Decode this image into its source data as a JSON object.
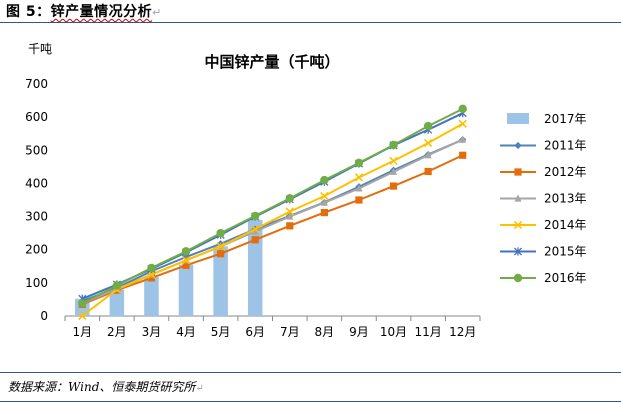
{
  "figure": {
    "label": "图 5：",
    "caption": "锌产量情况分析",
    "para_mark": "↵"
  },
  "source": {
    "text": "数据来源：Wind、恒泰期货研究所",
    "para_mark": "↵"
  },
  "chart_data": {
    "type": "bar+line",
    "title": "中国锌产量（千吨）",
    "unit_label": "千吨",
    "categories": [
      "1月",
      "2月",
      "3月",
      "4月",
      "5月",
      "6月",
      "7月",
      "8月",
      "9月",
      "10月",
      "11月",
      "12月"
    ],
    "ylim": [
      0,
      700
    ],
    "yticks": [
      0,
      100,
      200,
      300,
      400,
      500,
      600,
      700
    ],
    "grid": false,
    "legend_position": "right",
    "bar_series": {
      "name": "2017年",
      "color": "#9dc3e6",
      "values": [
        52,
        80,
        118,
        155,
        210,
        290
      ]
    },
    "series": [
      {
        "name": "2011年",
        "color": "#4f81bd",
        "marker": "diamond",
        "values": [
          45,
          85,
          135,
          178,
          218,
          262,
          302,
          343,
          390,
          440,
          487,
          532
        ]
      },
      {
        "name": "2012年",
        "color": "#e46c0a",
        "marker": "square",
        "values": [
          35,
          78,
          115,
          153,
          188,
          230,
          272,
          312,
          350,
          392,
          436,
          485
        ]
      },
      {
        "name": "2013年",
        "color": "#a6a6a6",
        "marker": "triangle",
        "values": [
          38,
          82,
          125,
          168,
          210,
          255,
          300,
          342,
          385,
          435,
          485,
          532
        ]
      },
      {
        "name": "2014年",
        "color": "#ffc000",
        "marker": "x",
        "values": [
          0,
          80,
          125,
          168,
          210,
          262,
          315,
          362,
          418,
          468,
          522,
          580
        ]
      },
      {
        "name": "2015年",
        "color": "#4472c4",
        "marker": "star",
        "values": [
          52,
          95,
          142,
          192,
          245,
          300,
          352,
          405,
          460,
          515,
          562,
          612
        ]
      },
      {
        "name": "2016年",
        "color": "#70ad47",
        "marker": "circle",
        "values": [
          38,
          92,
          145,
          195,
          250,
          302,
          355,
          410,
          462,
          516,
          573,
          625
        ]
      }
    ]
  }
}
